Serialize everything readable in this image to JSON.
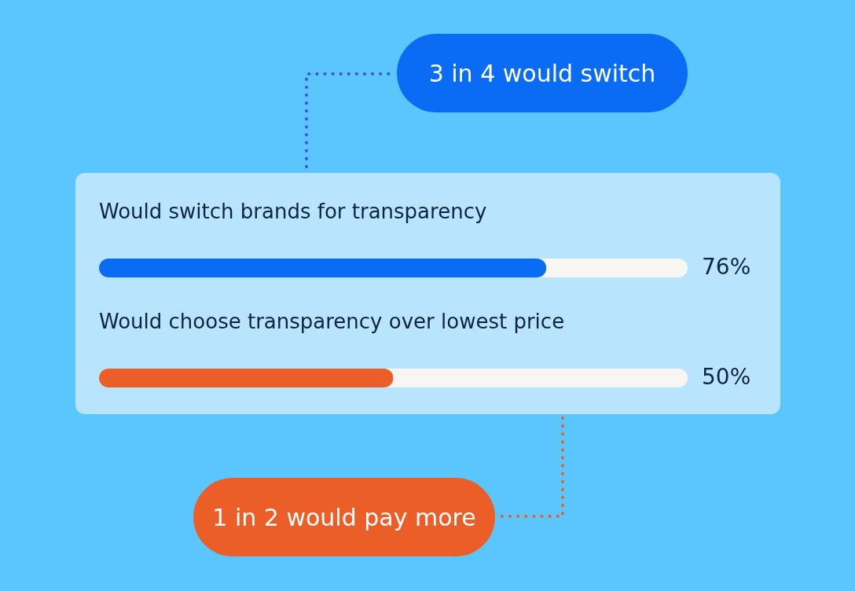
{
  "chart_data": {
    "type": "bar",
    "orientation": "horizontal",
    "categories": [
      "Would switch brands for transparency",
      "Would choose transparency over lowest price"
    ],
    "values": [
      76,
      50
    ],
    "colors": [
      "#0a6cf5",
      "#eb5e28"
    ],
    "value_labels": [
      "76%",
      "50%"
    ],
    "xlim": [
      0,
      100
    ],
    "tick_labels": false,
    "annotations": [
      "3 in 4 would switch",
      "1 in 2 would pay more"
    ]
  }
}
